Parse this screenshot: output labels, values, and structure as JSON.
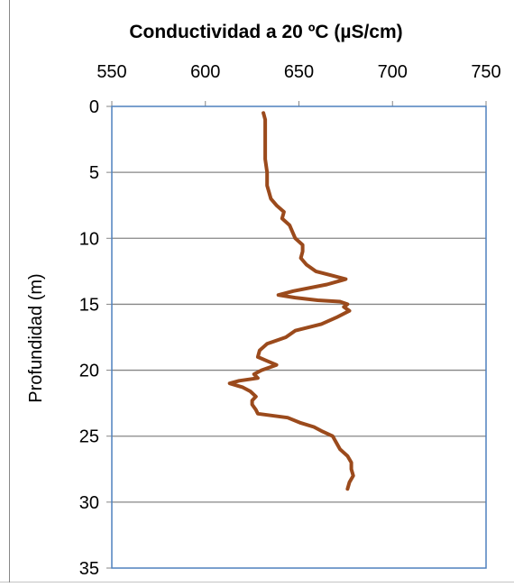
{
  "chart_data": {
    "type": "line",
    "title": "Conductividad  a  20 ºC (µS/cm)",
    "xlabel": "",
    "ylabel": "Profundidad (m)",
    "x_axis_position": "top",
    "y_axis_reversed": true,
    "xlim": [
      550,
      750
    ],
    "ylim": [
      0,
      35
    ],
    "x_ticks": [
      "550",
      "600",
      "650",
      "700",
      "750"
    ],
    "y_ticks": [
      "0",
      "5",
      "10",
      "15",
      "20",
      "25",
      "30",
      "35"
    ],
    "horizontal_grid": true,
    "vertical_grid": false,
    "legend": "none",
    "colors": {
      "line": "#9B4A1C",
      "plot_border": "#4F81BD",
      "grid": "#868686"
    },
    "series": [
      {
        "x": [
          631,
          632,
          632,
          632,
          632,
          633,
          633,
          634,
          635,
          638,
          642,
          641,
          645,
          648,
          652,
          652,
          651,
          654,
          659,
          667,
          675,
          665,
          647,
          639,
          648,
          660,
          672,
          676,
          674,
          677,
          670,
          662,
          648,
          643,
          633,
          629,
          628,
          633,
          638,
          630,
          626,
          628,
          618,
          613,
          620,
          624,
          627,
          625,
          625,
          627,
          628,
          644,
          651,
          658,
          662,
          668,
          670,
          672,
          676,
          678,
          678,
          679,
          677,
          676
        ],
        "y": [
          0.5,
          1,
          2,
          3,
          4,
          5,
          6,
          6.5,
          7,
          7.5,
          8,
          8.5,
          9,
          10,
          10.5,
          11,
          11.5,
          12,
          12.5,
          12.8,
          13.1,
          13.5,
          14,
          14.3,
          14.5,
          14.7,
          14.8,
          15,
          15.2,
          15.5,
          16,
          16.5,
          17,
          17.5,
          18,
          18.5,
          19,
          19.3,
          19.6,
          20,
          20.3,
          20.6,
          20.8,
          21,
          21.3,
          21.6,
          22,
          22.3,
          22.6,
          23,
          23.3,
          23.6,
          24,
          24.3,
          24.6,
          25,
          25.5,
          26,
          26.5,
          27,
          27.5,
          28,
          28.5,
          29
        ]
      }
    ]
  }
}
